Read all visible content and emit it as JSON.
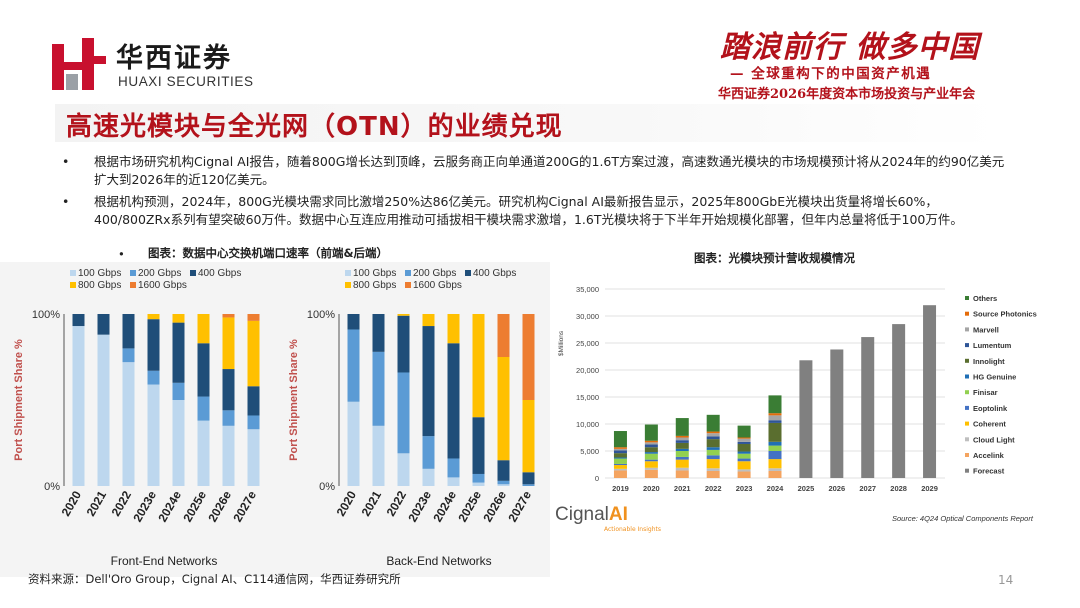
{
  "header": {
    "brand_cn": "华西证券",
    "brand_en": "HUAXI SECURITIES",
    "slogan": "踏浪前行 做多中国",
    "slogan_sub": "— 全球重构下的中国资产机遇",
    "conference": "华西证券2026年度资本市场投资与产业年会"
  },
  "title": "高速光模块与全光网（OTN）的业绩兑现",
  "bullets": [
    "根据市场研究机构Cignal AI报告，随着800G增长达到顶峰，云服务商正向单通道200G的1.6T方案过渡，高速数通光模块的市场规模预计将从2024年的约90亿美元扩大到2026年的近120亿美元。",
    "根据机构预测，2024年，800G光模块需求同比激增250%达86亿美元。研究机构Cignal AI最新报告显示，2025年800GbE光模块出货量将增长60%，400/800ZRx系列有望突破60万件。数据中心互连应用推动可插拔相干模块需求激增，1.6T光模块将于下半年开始规模化部署，但年内总量将低于100万件。"
  ],
  "bullet_symbol": "•",
  "figure1_caption": "图表：数据中心交换机端口速率（前端&后端）",
  "figure2_caption": "图表：光模块预计营收规模情况",
  "footer_source": "资料来源：Dell'Oro Group，Cignal AI、C114通信网，华西证券研究所",
  "page_number": "14",
  "cignal_logo": {
    "main": "Cignal",
    "ai": "AI",
    "sub": "Actionable Insights"
  },
  "cignal_source": "Source: 4Q24 Optical Components Report",
  "colors": {
    "brand_red": "#b3121b",
    "g100": "#bdd7ee",
    "g200": "#5b9bd5",
    "g400": "#1f4e79",
    "g800": "#ffc000",
    "g1600": "#ed7d31"
  },
  "chart_data": [
    {
      "type": "bar",
      "stacked": true,
      "title": "Front-End Networks",
      "ylabel": "Port Shipment Share %",
      "ylim": [
        0,
        100
      ],
      "ytick_labels": [
        "0%",
        "100%"
      ],
      "categories": [
        "2020",
        "2021",
        "2022",
        "2023e",
        "2024e",
        "2025e",
        "2026e",
        "2027e"
      ],
      "series": [
        {
          "name": "100 Gbps",
          "values": [
            93,
            88,
            72,
            59,
            50,
            38,
            35,
            33
          ]
        },
        {
          "name": "200 Gbps",
          "values": [
            0,
            0,
            8,
            8,
            10,
            14,
            9,
            8
          ]
        },
        {
          "name": "400 Gbps",
          "values": [
            7,
            12,
            20,
            30,
            35,
            31,
            24,
            17
          ]
        },
        {
          "name": "800 Gbps",
          "values": [
            0,
            0,
            0,
            3,
            5,
            17,
            30,
            38
          ]
        },
        {
          "name": "1600 Gbps",
          "values": [
            0,
            0,
            0,
            0,
            0,
            0,
            2,
            4
          ]
        }
      ]
    },
    {
      "type": "bar",
      "stacked": true,
      "title": "Back-End Networks",
      "ylabel": "Port Shipment Share %",
      "ylim": [
        0,
        100
      ],
      "ytick_labels": [
        "0%",
        "100%"
      ],
      "categories": [
        "2020",
        "2021",
        "2022",
        "2023e",
        "2024e",
        "2025e",
        "2026e",
        "2027e"
      ],
      "series": [
        {
          "name": "100 Gbps",
          "values": [
            49,
            35,
            19,
            10,
            5,
            2,
            1,
            0
          ]
        },
        {
          "name": "200 Gbps",
          "values": [
            42,
            43,
            47,
            19,
            11,
            5,
            2,
            1
          ]
        },
        {
          "name": "400 Gbps",
          "values": [
            9,
            22,
            33,
            64,
            67,
            33,
            12,
            7
          ]
        },
        {
          "name": "800 Gbps",
          "values": [
            0,
            0,
            1,
            7,
            17,
            60,
            60,
            42
          ]
        },
        {
          "name": "1600 Gbps",
          "values": [
            0,
            0,
            0,
            0,
            0,
            0,
            25,
            50
          ]
        }
      ]
    },
    {
      "type": "bar",
      "stacked": true,
      "title": "",
      "ylabel": "$Millions",
      "ylim": [
        0,
        35000
      ],
      "ytick_labels": [
        "0",
        "5,000",
        "10,000",
        "15,000",
        "20,000",
        "25,000",
        "30,000",
        "35,000"
      ],
      "categories": [
        "2019",
        "2020",
        "2021",
        "2022",
        "2023",
        "2024",
        "2025",
        "2026",
        "2027",
        "2028",
        "2029"
      ],
      "series": [
        {
          "name": "Others",
          "values": [
            3000,
            3000,
            3300,
            3100,
            2200,
            3300,
            0,
            0,
            0,
            0,
            0
          ]
        },
        {
          "name": "Source Photonics",
          "values": [
            300,
            300,
            300,
            300,
            200,
            400,
            0,
            0,
            0,
            0,
            0
          ]
        },
        {
          "name": "Marvell",
          "values": [
            300,
            400,
            500,
            600,
            600,
            900,
            0,
            0,
            0,
            0,
            0
          ]
        },
        {
          "name": "Lumentum",
          "values": [
            500,
            500,
            500,
            500,
            400,
            500,
            0,
            0,
            0,
            0,
            0
          ]
        },
        {
          "name": "Innolight",
          "values": [
            800,
            900,
            1100,
            1500,
            1400,
            3500,
            0,
            0,
            0,
            0,
            0
          ]
        },
        {
          "name": "HG Genuine",
          "values": [
            200,
            300,
            400,
            500,
            400,
            700,
            0,
            0,
            0,
            0,
            0
          ]
        },
        {
          "name": "Finisar",
          "values": [
            1000,
            1100,
            1100,
            1000,
            900,
            1000,
            0,
            0,
            0,
            0,
            0
          ]
        },
        {
          "name": "Eoptolink",
          "values": [
            200,
            300,
            500,
            700,
            500,
            1500,
            0,
            0,
            0,
            0,
            0
          ]
        },
        {
          "name": "Coherent",
          "values": [
            700,
            1200,
            1500,
            1700,
            1500,
            1700,
            0,
            0,
            0,
            0,
            0
          ]
        },
        {
          "name": "Cloud Light",
          "values": [
            300,
            400,
            500,
            500,
            400,
            500,
            0,
            0,
            0,
            0,
            0
          ]
        },
        {
          "name": "Accelink",
          "values": [
            1400,
            1500,
            1400,
            1300,
            1200,
            1300,
            0,
            0,
            0,
            0,
            0
          ]
        },
        {
          "name": "Forecast",
          "values": [
            0,
            0,
            0,
            0,
            0,
            0,
            21800,
            23800,
            26100,
            28500,
            32000
          ]
        }
      ]
    }
  ]
}
